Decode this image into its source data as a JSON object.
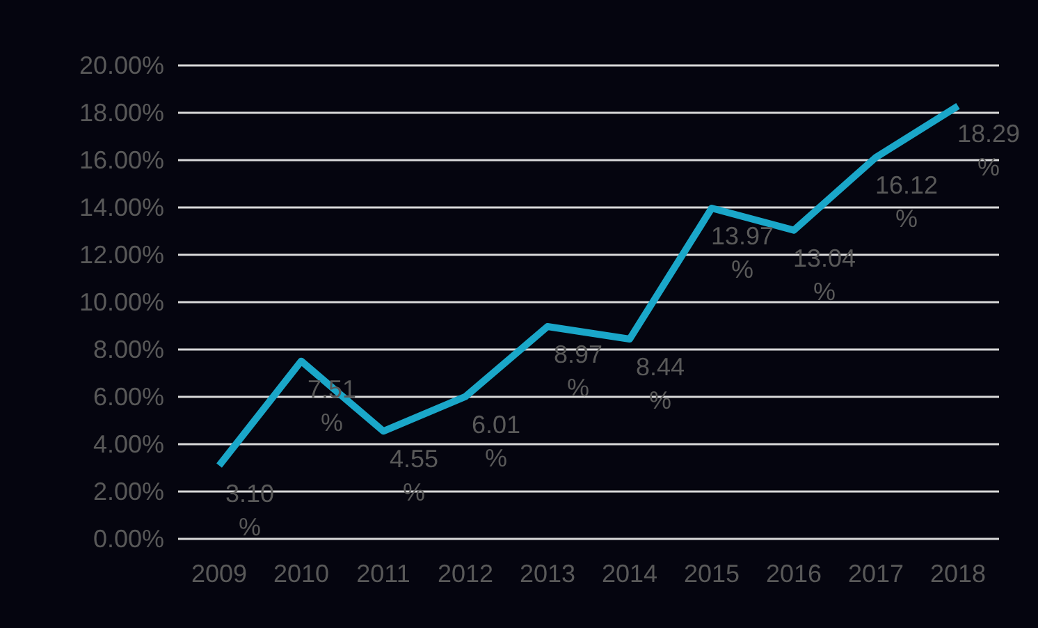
{
  "chart_data": {
    "type": "line",
    "categories": [
      "2009",
      "2010",
      "2011",
      "2012",
      "2013",
      "2014",
      "2015",
      "2016",
      "2017",
      "2018"
    ],
    "series": [
      {
        "color": "#1aa7c9",
        "values": [
          3.1,
          7.51,
          4.55,
          6.01,
          8.97,
          8.44,
          13.97,
          13.04,
          16.12,
          18.29
        ],
        "value_labels": [
          "3.10%",
          "7.51%",
          "4.55%",
          "6.01%",
          "8.97%",
          "8.44%",
          "13.97%",
          "13.04%",
          "16.12%",
          "18.29%"
        ]
      }
    ],
    "ylim": [
      0,
      20
    ],
    "yticks": [
      {
        "value": 0,
        "label": "0.00%"
      },
      {
        "value": 2,
        "label": "2.00%"
      },
      {
        "value": 4,
        "label": "4.00%"
      },
      {
        "value": 6,
        "label": "6.00%"
      },
      {
        "value": 8,
        "label": "8.00%"
      },
      {
        "value": 10,
        "label": "10.00%"
      },
      {
        "value": 12,
        "label": "12.00%"
      },
      {
        "value": 14,
        "label": "14.00%"
      },
      {
        "value": 16,
        "label": "16.00%"
      },
      {
        "value": 18,
        "label": "18.00%"
      },
      {
        "value": 20,
        "label": "20.00%"
      }
    ],
    "grid": "y",
    "marker": "none"
  }
}
